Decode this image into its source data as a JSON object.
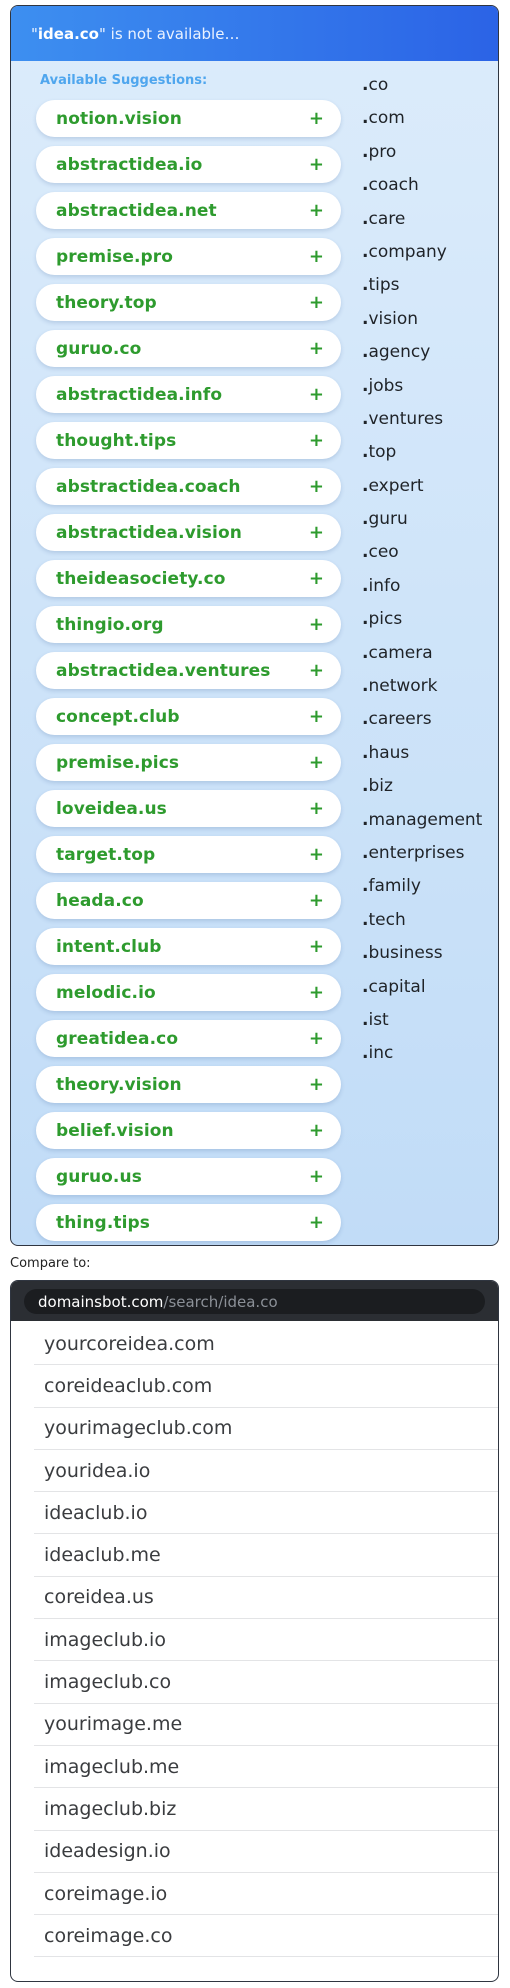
{
  "header": {
    "quote_open": "\"",
    "domain": "idea.co",
    "message": "\" is not available…"
  },
  "suggestions": {
    "title": "Available Suggestions:",
    "add_symbol": "+",
    "items": [
      "notion.vision",
      "abstractidea.io",
      "abstractidea.net",
      "premise.pro",
      "theory.top",
      "guruo.co",
      "abstractidea.info",
      "thought.tips",
      "abstractidea.coach",
      "abstractidea.vision",
      "theideasociety.co",
      "thingio.org",
      "abstractidea.ventures",
      "concept.club",
      "premise.pics",
      "loveidea.us",
      "target.top",
      "heada.co",
      "intent.club",
      "melodic.io",
      "greatidea.co",
      "theory.vision",
      "belief.vision",
      "guruo.us",
      "thing.tips"
    ]
  },
  "tlds": [
    "co",
    "com",
    "pro",
    "coach",
    "care",
    "company",
    "tips",
    "vision",
    "agency",
    "jobs",
    "ventures",
    "top",
    "expert",
    "guru",
    "ceo",
    "info",
    "pics",
    "camera",
    "network",
    "careers",
    "haus",
    "biz",
    "management",
    "enterprises",
    "family",
    "tech",
    "business",
    "capital",
    "ist",
    "inc"
  ],
  "compare": {
    "label": "Compare to:",
    "url_domain": "domainsbot.com",
    "url_path": "/search/idea.co",
    "results": [
      "yourcoreidea.com",
      "coreideaclub.com",
      "yourimageclub.com",
      "youridea.io",
      "ideaclub.io",
      "ideaclub.me",
      "coreidea.us",
      "imageclub.io",
      "imageclub.co",
      "yourimage.me",
      "imageclub.me",
      "imageclub.biz",
      "ideadesign.io",
      "coreimage.io",
      "coreimage.co"
    ]
  }
}
